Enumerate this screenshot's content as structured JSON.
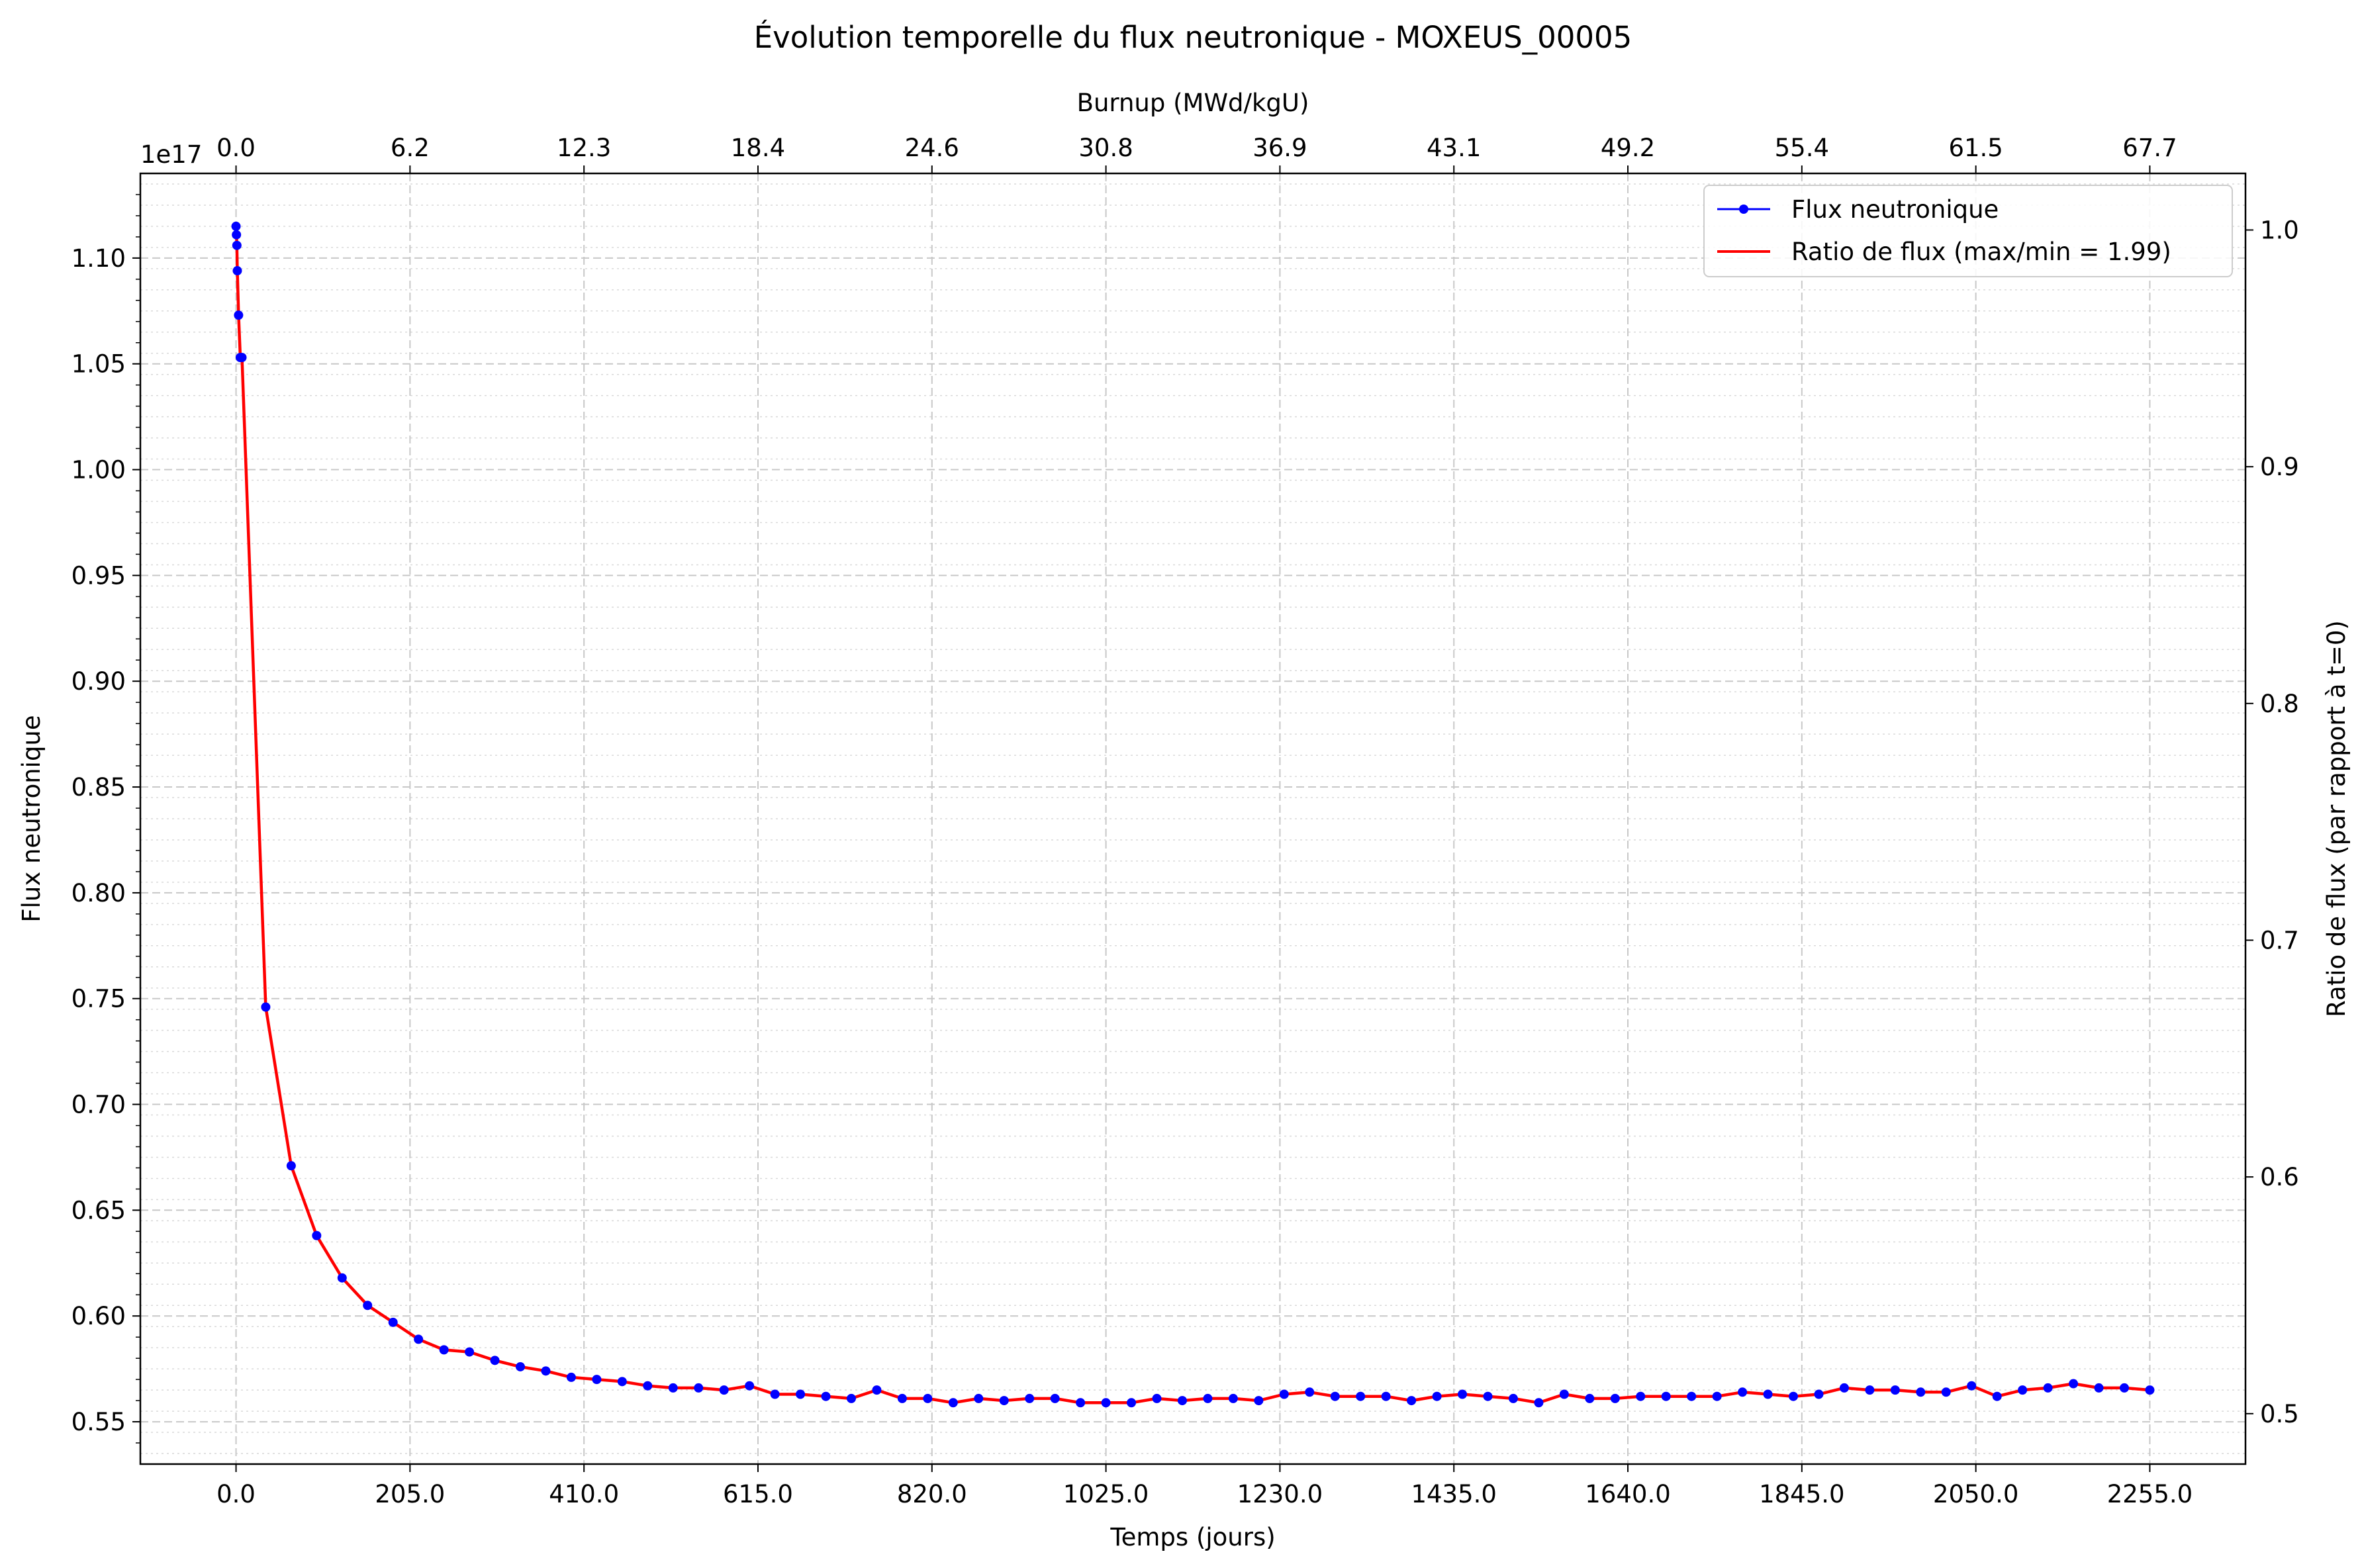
{
  "chart_data": {
    "type": "line",
    "title": "Évolution temporelle du flux neutronique - MOXEUS_00005",
    "xlabel": "Temps (jours)",
    "ylabel": "Flux neutronique",
    "y_offset_label": "1e17",
    "top_xlabel": "Burnup (MWd/kgU)",
    "right_ylabel": "Ratio de flux (par rapport à t=0)",
    "xlim": [
      -112.75,
      2367.75
    ],
    "ylim": [
      0.53,
      1.14
    ],
    "right_ylim": [
      0.4787,
      1.0239
    ],
    "x_tick_labels": [
      "0.0",
      "205.0",
      "410.0",
      "615.0",
      "820.0",
      "1025.0",
      "1230.0",
      "1435.0",
      "1640.0",
      "1845.0",
      "2050.0",
      "2255.0"
    ],
    "y_tick_labels": [
      "0.55",
      "0.60",
      "0.65",
      "0.70",
      "0.75",
      "0.80",
      "0.85",
      "0.90",
      "0.95",
      "1.00",
      "1.05",
      "1.10"
    ],
    "top_tick_labels": [
      "0.0",
      "6.2",
      "12.3",
      "18.4",
      "24.6",
      "30.8",
      "36.9",
      "43.1",
      "49.2",
      "55.4",
      "61.5",
      "67.7"
    ],
    "right_tick_labels": [
      "0.5",
      "0.6",
      "0.7",
      "0.8",
      "0.9",
      "1.0"
    ],
    "grid": true,
    "legend_position": "top-right",
    "series": [
      {
        "name": "Flux neutronique",
        "color": "#0000ff",
        "marker": "circle",
        "x": [
          0,
          0.5,
          1,
          1.5,
          3,
          5,
          7,
          35,
          65,
          95,
          125,
          155,
          185,
          215,
          245,
          275,
          305,
          335,
          365,
          395,
          425,
          455,
          485,
          515,
          545,
          575,
          605,
          635,
          665,
          695,
          725,
          755,
          785,
          815,
          845,
          875,
          905,
          935,
          965,
          995,
          1025,
          1055,
          1085,
          1115,
          1145,
          1175,
          1205,
          1235,
          1265,
          1295,
          1325,
          1355,
          1385,
          1415,
          1445,
          1475,
          1505,
          1535,
          1565,
          1595,
          1625,
          1655,
          1685,
          1715,
          1745,
          1775,
          1805,
          1835,
          1865,
          1895,
          1925,
          1955,
          1985,
          2015,
          2045,
          2075,
          2105,
          2135,
          2165,
          2195,
          2225,
          2255
        ],
        "y": [
          1.115,
          1.111,
          1.106,
          1.094,
          1.073,
          1.053,
          1.053,
          0.746,
          0.671,
          0.638,
          0.618,
          0.605,
          0.597,
          0.589,
          0.584,
          0.583,
          0.579,
          0.576,
          0.574,
          0.571,
          0.57,
          0.569,
          0.567,
          0.566,
          0.566,
          0.565,
          0.567,
          0.563,
          0.563,
          0.562,
          0.561,
          0.565,
          0.561,
          0.561,
          0.559,
          0.561,
          0.56,
          0.561,
          0.561,
          0.559,
          0.559,
          0.559,
          0.561,
          0.56,
          0.561,
          0.561,
          0.56,
          0.563,
          0.564,
          0.562,
          0.562,
          0.562,
          0.56,
          0.562,
          0.563,
          0.562,
          0.561,
          0.559,
          0.563,
          0.561,
          0.561,
          0.562,
          0.562,
          0.562,
          0.562,
          0.564,
          0.563,
          0.562,
          0.563,
          0.566,
          0.565,
          0.565,
          0.564,
          0.564,
          0.567,
          0.562,
          0.565,
          0.566,
          0.568,
          0.566,
          0.566,
          0.565
        ]
      },
      {
        "name": "Ratio de flux (max/min = 1.99)",
        "color": "#ff0000",
        "axis": "right",
        "note": "same curve on right ratio axis (flux / flux at t=0)"
      }
    ]
  }
}
